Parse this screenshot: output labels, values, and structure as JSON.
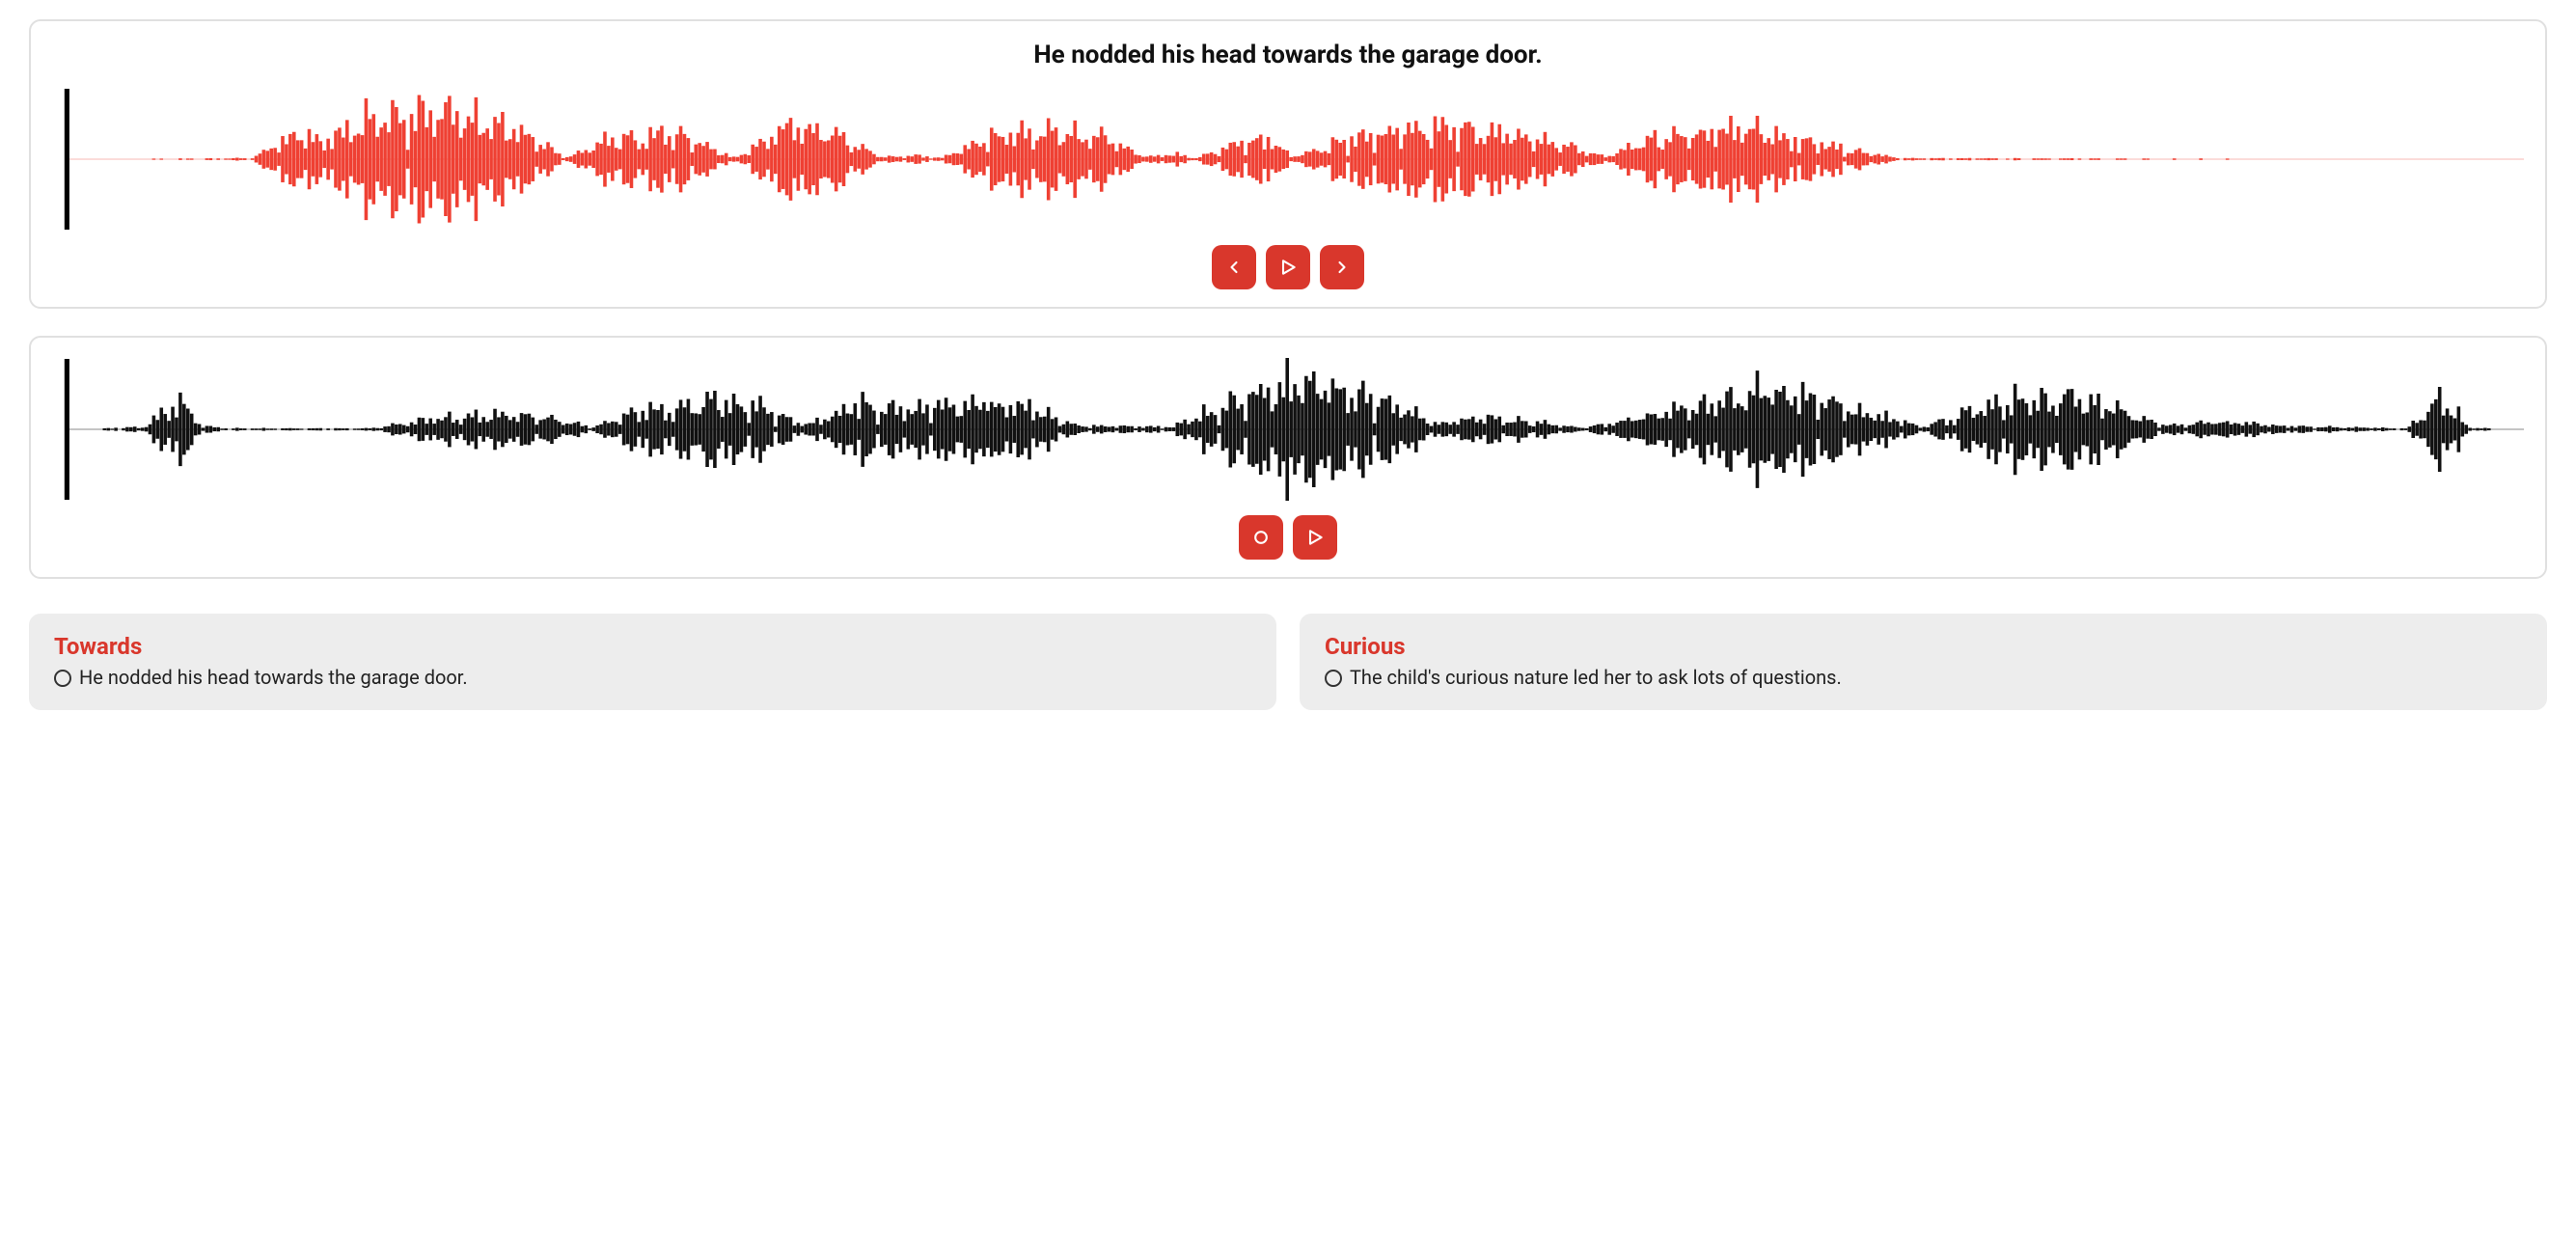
{
  "colors": {
    "accent": "#d9372c",
    "panel_border": "#e0e0e0",
    "option_bg": "#ededed",
    "text": "#111111",
    "waveform_top": "#ef4033",
    "waveform_bottom": "#111111",
    "waveform_baseline_top": "#f7b9b4",
    "waveform_baseline_bottom": "#888888"
  },
  "top_panel": {
    "sentence": "He nodded his head towards the garage door.",
    "waveform": {
      "type": "waveform",
      "color": "#ef4033",
      "baseline_color": "#f7b9b4",
      "has_cursor": true,
      "cursor_position": 0.0,
      "envelope": [
        [
          0.0,
          0.0
        ],
        [
          0.07,
          0.02
        ],
        [
          0.09,
          0.55
        ],
        [
          0.1,
          0.35
        ],
        [
          0.12,
          0.9
        ],
        [
          0.14,
          0.95
        ],
        [
          0.16,
          0.85
        ],
        [
          0.18,
          0.6
        ],
        [
          0.2,
          0.05
        ],
        [
          0.22,
          0.45
        ],
        [
          0.245,
          0.55
        ],
        [
          0.26,
          0.25
        ],
        [
          0.27,
          0.02
        ],
        [
          0.29,
          0.62
        ],
        [
          0.31,
          0.55
        ],
        [
          0.33,
          0.05
        ],
        [
          0.345,
          0.08
        ],
        [
          0.355,
          0.02
        ],
        [
          0.38,
          0.55
        ],
        [
          0.4,
          0.6
        ],
        [
          0.42,
          0.45
        ],
        [
          0.44,
          0.05
        ],
        [
          0.45,
          0.12
        ],
        [
          0.46,
          0.02
        ],
        [
          0.48,
          0.35
        ],
        [
          0.49,
          0.4
        ],
        [
          0.5,
          0.05
        ],
        [
          0.53,
          0.5
        ],
        [
          0.56,
          0.65
        ],
        [
          0.59,
          0.55
        ],
        [
          0.61,
          0.3
        ],
        [
          0.63,
          0.05
        ],
        [
          0.65,
          0.45
        ],
        [
          0.68,
          0.62
        ],
        [
          0.7,
          0.5
        ],
        [
          0.73,
          0.2
        ],
        [
          0.75,
          0.02
        ],
        [
          1.0,
          0.0
        ]
      ]
    },
    "controls": {
      "prev_label": "previous",
      "play_label": "play",
      "next_label": "next"
    }
  },
  "bottom_panel": {
    "waveform": {
      "type": "waveform",
      "color": "#111111",
      "baseline_color": "#888888",
      "has_cursor": true,
      "cursor_position": 0.0,
      "envelope": [
        [
          0.0,
          0.0
        ],
        [
          0.025,
          0.05
        ],
        [
          0.04,
          0.55
        ],
        [
          0.05,
          0.08
        ],
        [
          0.06,
          0.02
        ],
        [
          0.12,
          0.02
        ],
        [
          0.14,
          0.2
        ],
        [
          0.17,
          0.3
        ],
        [
          0.19,
          0.25
        ],
        [
          0.21,
          0.05
        ],
        [
          0.23,
          0.35
        ],
        [
          0.26,
          0.6
        ],
        [
          0.28,
          0.45
        ],
        [
          0.3,
          0.08
        ],
        [
          0.32,
          0.5
        ],
        [
          0.34,
          0.4
        ],
        [
          0.36,
          0.55
        ],
        [
          0.39,
          0.5
        ],
        [
          0.41,
          0.08
        ],
        [
          0.45,
          0.05
        ],
        [
          0.48,
          0.65
        ],
        [
          0.5,
          0.95
        ],
        [
          0.52,
          0.8
        ],
        [
          0.54,
          0.55
        ],
        [
          0.56,
          0.1
        ],
        [
          0.58,
          0.25
        ],
        [
          0.6,
          0.15
        ],
        [
          0.62,
          0.03
        ],
        [
          0.66,
          0.4
        ],
        [
          0.69,
          0.75
        ],
        [
          0.72,
          0.65
        ],
        [
          0.74,
          0.3
        ],
        [
          0.76,
          0.05
        ],
        [
          0.79,
          0.55
        ],
        [
          0.82,
          0.65
        ],
        [
          0.84,
          0.4
        ],
        [
          0.86,
          0.08
        ],
        [
          0.88,
          0.15
        ],
        [
          0.92,
          0.05
        ],
        [
          0.96,
          0.02
        ],
        [
          0.975,
          0.7
        ],
        [
          0.985,
          0.05
        ],
        [
          1.0,
          0.0
        ]
      ]
    },
    "controls": {
      "record_label": "record",
      "play_label": "play"
    }
  },
  "options": [
    {
      "word": "Towards",
      "sentence": "He nodded his head towards the garage door.",
      "selected": false
    },
    {
      "word": "Curious",
      "sentence": "The child's curious nature led her to ask lots of questions.",
      "selected": false
    }
  ]
}
